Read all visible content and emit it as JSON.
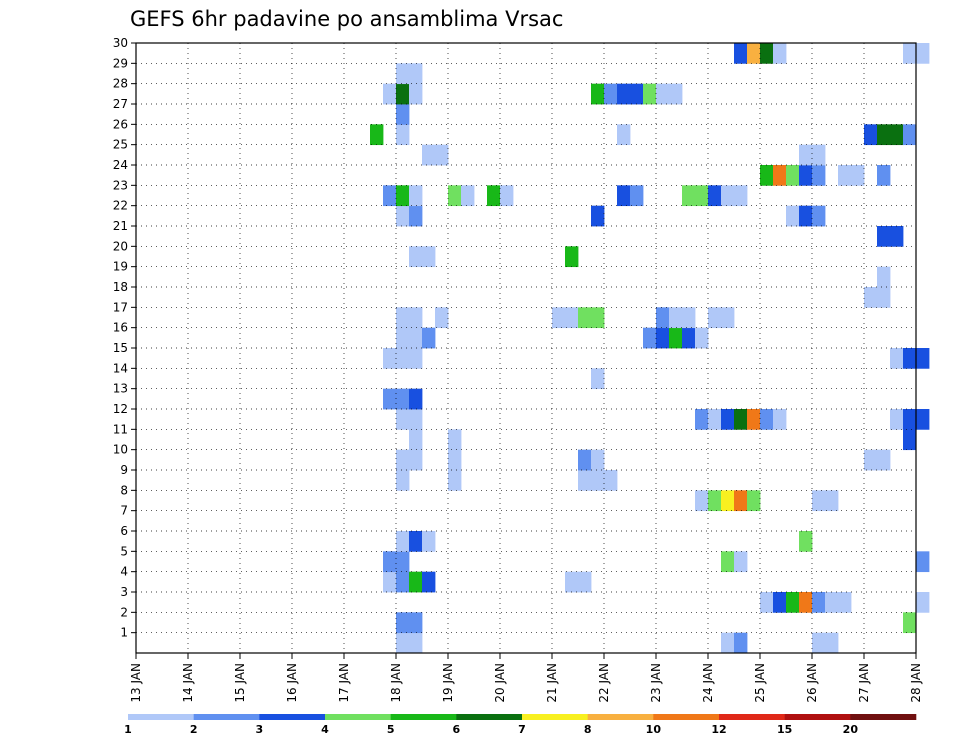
{
  "chart_data": {
    "type": "heatmap",
    "title": "GEFS 6hr padavine po ansamblima Vrsac",
    "xlabel": "",
    "ylabel": "",
    "x_ticks": [
      "13 JAN",
      "14 JAN",
      "15 JAN",
      "16 JAN",
      "17 JAN",
      "18 JAN",
      "19 JAN",
      "20 JAN",
      "21 JAN",
      "22 JAN",
      "23 JAN",
      "24 JAN",
      "25 JAN",
      "26 JAN",
      "27 JAN",
      "28 JAN"
    ],
    "y_ticks": [
      "1",
      "2",
      "3",
      "4",
      "5",
      "6",
      "7",
      "8",
      "9",
      "10",
      "11",
      "12",
      "13",
      "14",
      "15",
      "16",
      "17",
      "18",
      "19",
      "20",
      "21",
      "22",
      "23",
      "24",
      "25",
      "26",
      "27",
      "28",
      "29",
      "30"
    ],
    "xlim": [
      "13 JAN",
      "28 JAN"
    ],
    "ylim": [
      0,
      30
    ],
    "grid": true,
    "colorbar": {
      "placement": "bottom",
      "levels": [
        1,
        2,
        3,
        4,
        5,
        6,
        7,
        8,
        10,
        12,
        15,
        20
      ],
      "colors": [
        "#b0c8f8",
        "#6090f0",
        "#1850e0",
        "#70e060",
        "#18b818",
        "#0a7010",
        "#f8f020",
        "#f8b040",
        "#f07818",
        "#e02818",
        "#b01010",
        "#701010"
      ]
    },
    "cells": [
      {
        "x": 18.0,
        "y": 0,
        "c": 1
      },
      {
        "x": 18.25,
        "y": 0,
        "c": 1
      },
      {
        "x": 24.25,
        "y": 0,
        "c": 1
      },
      {
        "x": 24.5,
        "y": 0,
        "c": 2
      },
      {
        "x": 26.0,
        "y": 0,
        "c": 1
      },
      {
        "x": 26.25,
        "y": 0,
        "c": 1
      },
      {
        "x": 18.0,
        "y": 1,
        "c": 2
      },
      {
        "x": 18.25,
        "y": 1,
        "c": 2
      },
      {
        "x": 27.75,
        "y": 1,
        "c": 4
      },
      {
        "x": 25.0,
        "y": 2,
        "c": 1
      },
      {
        "x": 25.25,
        "y": 2,
        "c": 3
      },
      {
        "x": 25.5,
        "y": 2,
        "c": 5
      },
      {
        "x": 25.75,
        "y": 2,
        "c": 9
      },
      {
        "x": 26.0,
        "y": 2,
        "c": 2
      },
      {
        "x": 26.25,
        "y": 2,
        "c": 1
      },
      {
        "x": 26.5,
        "y": 2,
        "c": 1
      },
      {
        "x": 28.0,
        "y": 2,
        "c": 1
      },
      {
        "x": 17.75,
        "y": 3,
        "c": 1
      },
      {
        "x": 18.0,
        "y": 3,
        "c": 2
      },
      {
        "x": 18.25,
        "y": 3,
        "c": 5
      },
      {
        "x": 18.5,
        "y": 3,
        "c": 3
      },
      {
        "x": 21.25,
        "y": 3,
        "c": 1
      },
      {
        "x": 21.5,
        "y": 3,
        "c": 1
      },
      {
        "x": 17.75,
        "y": 4,
        "c": 2
      },
      {
        "x": 18.0,
        "y": 4,
        "c": 2
      },
      {
        "x": 24.25,
        "y": 4,
        "c": 4
      },
      {
        "x": 24.5,
        "y": 4,
        "c": 1
      },
      {
        "x": 28.0,
        "y": 4,
        "c": 2
      },
      {
        "x": 18.0,
        "y": 5,
        "c": 1
      },
      {
        "x": 18.25,
        "y": 5,
        "c": 3
      },
      {
        "x": 18.5,
        "y": 5,
        "c": 1
      },
      {
        "x": 25.75,
        "y": 5,
        "c": 4
      },
      {
        "x": 23.75,
        "y": 7,
        "c": 1
      },
      {
        "x": 24.0,
        "y": 7,
        "c": 4
      },
      {
        "x": 24.25,
        "y": 7,
        "c": 7
      },
      {
        "x": 24.5,
        "y": 7,
        "c": 9
      },
      {
        "x": 24.75,
        "y": 7,
        "c": 4
      },
      {
        "x": 26.0,
        "y": 7,
        "c": 1
      },
      {
        "x": 26.25,
        "y": 7,
        "c": 1
      },
      {
        "x": 18.0,
        "y": 8,
        "c": 1
      },
      {
        "x": 19.0,
        "y": 8,
        "c": 1
      },
      {
        "x": 21.5,
        "y": 8,
        "c": 1
      },
      {
        "x": 21.75,
        "y": 8,
        "c": 1
      },
      {
        "x": 22.0,
        "y": 8,
        "c": 1
      },
      {
        "x": 18.0,
        "y": 9,
        "c": 1
      },
      {
        "x": 18.25,
        "y": 9,
        "c": 1
      },
      {
        "x": 19.0,
        "y": 9,
        "c": 1
      },
      {
        "x": 21.5,
        "y": 9,
        "c": 2
      },
      {
        "x": 21.75,
        "y": 9,
        "c": 1
      },
      {
        "x": 27.0,
        "y": 9,
        "c": 1
      },
      {
        "x": 27.25,
        "y": 9,
        "c": 1
      },
      {
        "x": 18.25,
        "y": 10,
        "c": 1
      },
      {
        "x": 19.0,
        "y": 10,
        "c": 1
      },
      {
        "x": 27.75,
        "y": 10,
        "c": 3
      },
      {
        "x": 18.0,
        "y": 11,
        "c": 1
      },
      {
        "x": 18.25,
        "y": 11,
        "c": 1
      },
      {
        "x": 23.75,
        "y": 11,
        "c": 2
      },
      {
        "x": 24.0,
        "y": 11,
        "c": 1
      },
      {
        "x": 24.25,
        "y": 11,
        "c": 3
      },
      {
        "x": 24.5,
        "y": 11,
        "c": 6
      },
      {
        "x": 24.75,
        "y": 11,
        "c": 9
      },
      {
        "x": 25.0,
        "y": 11,
        "c": 2
      },
      {
        "x": 25.25,
        "y": 11,
        "c": 1
      },
      {
        "x": 27.5,
        "y": 11,
        "c": 1
      },
      {
        "x": 27.75,
        "y": 11,
        "c": 3
      },
      {
        "x": 28.0,
        "y": 11,
        "c": 3
      },
      {
        "x": 17.75,
        "y": 12,
        "c": 2
      },
      {
        "x": 18.0,
        "y": 12,
        "c": 2
      },
      {
        "x": 18.25,
        "y": 12,
        "c": 3
      },
      {
        "x": 21.75,
        "y": 13,
        "c": 1
      },
      {
        "x": 17.75,
        "y": 14,
        "c": 1
      },
      {
        "x": 18.0,
        "y": 14,
        "c": 1
      },
      {
        "x": 18.25,
        "y": 14,
        "c": 1
      },
      {
        "x": 27.5,
        "y": 14,
        "c": 1
      },
      {
        "x": 27.75,
        "y": 14,
        "c": 3
      },
      {
        "x": 28.0,
        "y": 14,
        "c": 3
      },
      {
        "x": 18.0,
        "y": 15,
        "c": 1
      },
      {
        "x": 18.25,
        "y": 15,
        "c": 1
      },
      {
        "x": 18.5,
        "y": 15,
        "c": 2
      },
      {
        "x": 22.75,
        "y": 15,
        "c": 2
      },
      {
        "x": 23.0,
        "y": 15,
        "c": 3
      },
      {
        "x": 23.25,
        "y": 15,
        "c": 5
      },
      {
        "x": 23.5,
        "y": 15,
        "c": 3
      },
      {
        "x": 23.75,
        "y": 15,
        "c": 1
      },
      {
        "x": 18.0,
        "y": 16,
        "c": 1
      },
      {
        "x": 18.25,
        "y": 16,
        "c": 1
      },
      {
        "x": 18.75,
        "y": 16,
        "c": 1
      },
      {
        "x": 21.0,
        "y": 16,
        "c": 1
      },
      {
        "x": 21.25,
        "y": 16,
        "c": 1
      },
      {
        "x": 21.5,
        "y": 16,
        "c": 4
      },
      {
        "x": 21.75,
        "y": 16,
        "c": 4
      },
      {
        "x": 23.0,
        "y": 16,
        "c": 2
      },
      {
        "x": 23.25,
        "y": 16,
        "c": 1
      },
      {
        "x": 23.5,
        "y": 16,
        "c": 1
      },
      {
        "x": 24.0,
        "y": 16,
        "c": 1
      },
      {
        "x": 24.25,
        "y": 16,
        "c": 1
      },
      {
        "x": 27.0,
        "y": 17,
        "c": 1
      },
      {
        "x": 27.25,
        "y": 17,
        "c": 1
      },
      {
        "x": 27.25,
        "y": 18,
        "c": 1
      },
      {
        "x": 21.25,
        "y": 19,
        "c": 5
      },
      {
        "x": 18.25,
        "y": 19,
        "c": 1
      },
      {
        "x": 18.5,
        "y": 19,
        "c": 1
      },
      {
        "x": 27.25,
        "y": 20,
        "c": 3
      },
      {
        "x": 27.5,
        "y": 20,
        "c": 3
      },
      {
        "x": 18.0,
        "y": 21,
        "c": 1
      },
      {
        "x": 18.25,
        "y": 21,
        "c": 2
      },
      {
        "x": 21.75,
        "y": 21,
        "c": 3
      },
      {
        "x": 25.5,
        "y": 21,
        "c": 1
      },
      {
        "x": 25.75,
        "y": 21,
        "c": 3
      },
      {
        "x": 26.0,
        "y": 21,
        "c": 2
      },
      {
        "x": 17.75,
        "y": 22,
        "c": 2
      },
      {
        "x": 18.0,
        "y": 22,
        "c": 5
      },
      {
        "x": 18.25,
        "y": 22,
        "c": 1
      },
      {
        "x": 19.0,
        "y": 22,
        "c": 4
      },
      {
        "x": 19.25,
        "y": 22,
        "c": 1
      },
      {
        "x": 19.75,
        "y": 22,
        "c": 5
      },
      {
        "x": 20.0,
        "y": 22,
        "c": 1
      },
      {
        "x": 22.25,
        "y": 22,
        "c": 3
      },
      {
        "x": 22.5,
        "y": 22,
        "c": 2
      },
      {
        "x": 23.5,
        "y": 22,
        "c": 4
      },
      {
        "x": 23.75,
        "y": 22,
        "c": 4
      },
      {
        "x": 24.0,
        "y": 22,
        "c": 3
      },
      {
        "x": 24.25,
        "y": 22,
        "c": 1
      },
      {
        "x": 24.5,
        "y": 22,
        "c": 1
      },
      {
        "x": 25.0,
        "y": 23,
        "c": 5
      },
      {
        "x": 25.25,
        "y": 23,
        "c": 9
      },
      {
        "x": 25.5,
        "y": 23,
        "c": 4
      },
      {
        "x": 25.75,
        "y": 23,
        "c": 3
      },
      {
        "x": 26.0,
        "y": 23,
        "c": 2
      },
      {
        "x": 26.5,
        "y": 23,
        "c": 1
      },
      {
        "x": 26.75,
        "y": 23,
        "c": 1
      },
      {
        "x": 27.25,
        "y": 23,
        "c": 2
      },
      {
        "x": 18.5,
        "y": 24,
        "c": 1
      },
      {
        "x": 18.75,
        "y": 24,
        "c": 1
      },
      {
        "x": 25.75,
        "y": 24,
        "c": 1
      },
      {
        "x": 26.0,
        "y": 24,
        "c": 1
      },
      {
        "x": 17.5,
        "y": 25,
        "c": 5
      },
      {
        "x": 18.0,
        "y": 25,
        "c": 1
      },
      {
        "x": 22.25,
        "y": 25,
        "c": 1
      },
      {
        "x": 27.0,
        "y": 25,
        "c": 3
      },
      {
        "x": 27.25,
        "y": 25,
        "c": 6
      },
      {
        "x": 27.5,
        "y": 25,
        "c": 6
      },
      {
        "x": 27.75,
        "y": 25,
        "c": 2
      },
      {
        "x": 18.0,
        "y": 26,
        "c": 2
      },
      {
        "x": 17.75,
        "y": 27,
        "c": 1
      },
      {
        "x": 18.0,
        "y": 27,
        "c": 6
      },
      {
        "x": 18.25,
        "y": 27,
        "c": 1
      },
      {
        "x": 21.75,
        "y": 27,
        "c": 5
      },
      {
        "x": 22.0,
        "y": 27,
        "c": 2
      },
      {
        "x": 22.25,
        "y": 27,
        "c": 3
      },
      {
        "x": 22.5,
        "y": 27,
        "c": 3
      },
      {
        "x": 22.75,
        "y": 27,
        "c": 4
      },
      {
        "x": 23.0,
        "y": 27,
        "c": 1
      },
      {
        "x": 23.25,
        "y": 27,
        "c": 1
      },
      {
        "x": 18.0,
        "y": 28,
        "c": 1
      },
      {
        "x": 18.25,
        "y": 28,
        "c": 1
      },
      {
        "x": 24.5,
        "y": 29,
        "c": 3
      },
      {
        "x": 24.75,
        "y": 29,
        "c": 8
      },
      {
        "x": 25.0,
        "y": 29,
        "c": 6
      },
      {
        "x": 25.25,
        "y": 29,
        "c": 1
      },
      {
        "x": 27.75,
        "y": 29,
        "c": 1
      },
      {
        "x": 28.0,
        "y": 29,
        "c": 1
      }
    ]
  }
}
